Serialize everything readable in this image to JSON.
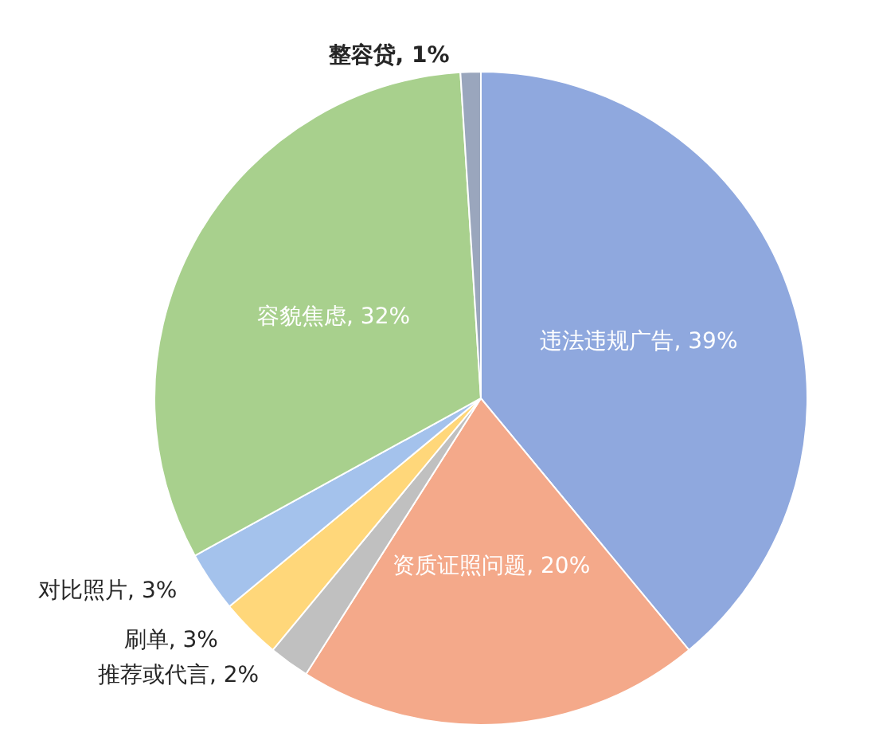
{
  "chart_data": {
    "type": "pie",
    "categories": [
      "违法违规广告",
      "资质证照问题",
      "推荐或代言",
      "刷单",
      "对比照片",
      "容貌焦虑",
      "整容贷"
    ],
    "values": [
      39,
      20,
      2,
      3,
      3,
      32,
      1
    ],
    "value_labels": [
      "39%",
      "20%",
      "2%",
      "3%",
      "3%",
      "32%",
      "1%"
    ],
    "colors": [
      "#8fa8de",
      "#f4a98a",
      "#c0c0c0",
      "#ffd77a",
      "#a4c2ec",
      "#a8d08d",
      "#9aa6bd"
    ]
  }
}
